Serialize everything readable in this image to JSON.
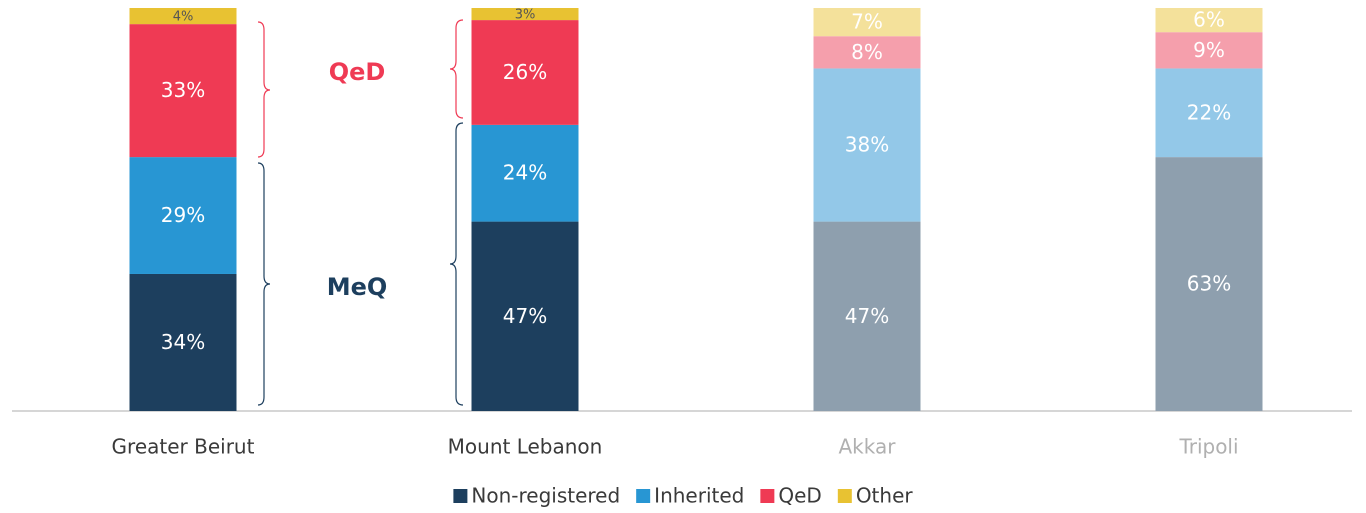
{
  "chart_data": {
    "type": "stacked_bar",
    "categories": [
      "Greater Beirut",
      "Mount Lebanon",
      "Akkar",
      "Tripoli"
    ],
    "series": [
      {
        "name": "Non-registered",
        "color": "#1d3f5e",
        "colors": [
          "#1d3f5e",
          "#1d3f5e",
          "#8e9fae",
          "#8e9fae"
        ],
        "values": [
          34,
          47,
          47,
          63
        ],
        "value_labels": [
          "34%",
          "47%",
          "47%",
          "63%"
        ]
      },
      {
        "name": "Inherited",
        "color": "#2896d3",
        "colors": [
          "#2896d3",
          "#2896d3",
          "#93c8e8",
          "#93c8e8"
        ],
        "values": [
          29,
          24,
          38,
          22
        ],
        "value_labels": [
          "29%",
          "24%",
          "38%",
          "22%"
        ]
      },
      {
        "name": "QeD",
        "color": "#ef3a54",
        "colors": [
          "#ef3a54",
          "#ef3a54",
          "#f59fac",
          "#f59fac"
        ],
        "values": [
          33,
          26,
          8,
          9
        ],
        "value_labels": [
          "33%",
          "26%",
          "8%",
          "9%"
        ]
      },
      {
        "name": "Other",
        "color": "#e8c232",
        "colors": [
          "#e8c232",
          "#e8c232",
          "#f4e19b",
          "#f4e19b"
        ],
        "values": [
          4,
          3,
          7,
          6
        ],
        "value_labels": [
          "4%",
          "3%",
          "7%",
          "6%"
        ]
      }
    ],
    "annotations": [
      {
        "text": "QeD",
        "color": "#ef3a54"
      },
      {
        "text": "MeQ",
        "color": "#1d3f5e"
      }
    ]
  }
}
